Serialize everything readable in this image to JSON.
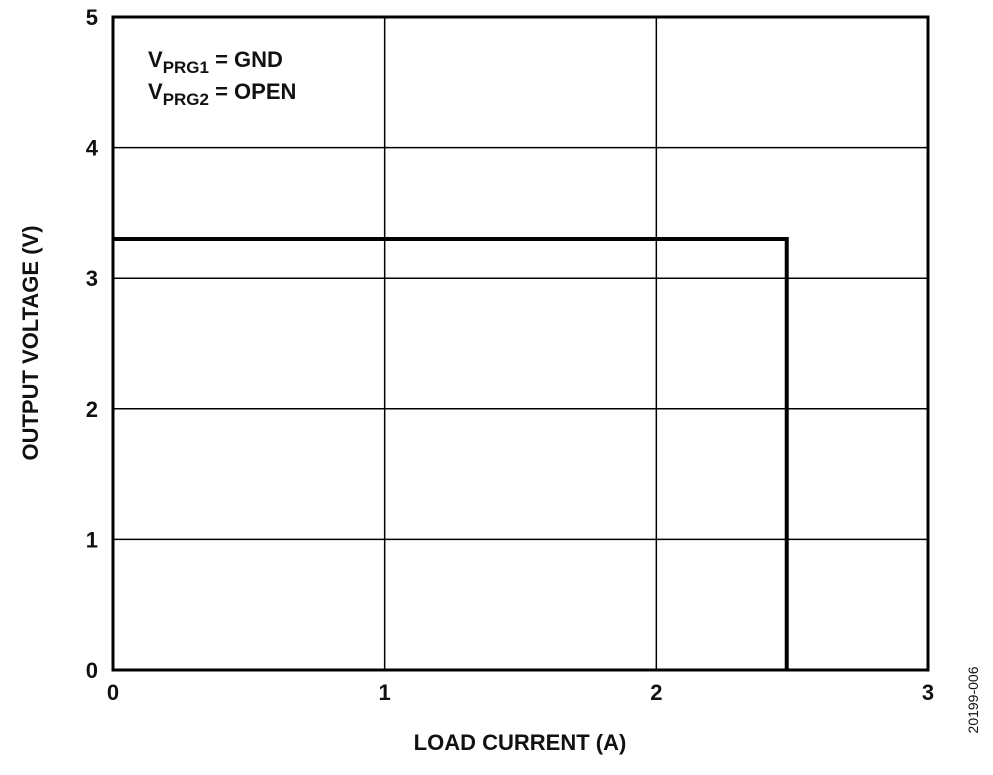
{
  "chart_data": {
    "type": "line",
    "title": "",
    "xlabel": "LOAD CURRENT (A)",
    "ylabel": "OUTPUT VOLTAGE (V)",
    "xlim": [
      0,
      3
    ],
    "ylim": [
      0,
      5
    ],
    "x_ticks": [
      "0",
      "1",
      "2",
      "3"
    ],
    "y_ticks": [
      "0",
      "1",
      "2",
      "3",
      "4",
      "5"
    ],
    "grid": true,
    "annotations": [
      {
        "main": "V",
        "sub": "PRG1",
        "rest": " = GND"
      },
      {
        "main": "V",
        "sub": "PRG2",
        "rest": " = OPEN"
      }
    ],
    "series": [
      {
        "x": [
          0,
          2.48,
          2.48
        ],
        "y": [
          3.3,
          3.3,
          0
        ],
        "color": "#000000"
      }
    ],
    "figure_id": "20199-006"
  }
}
